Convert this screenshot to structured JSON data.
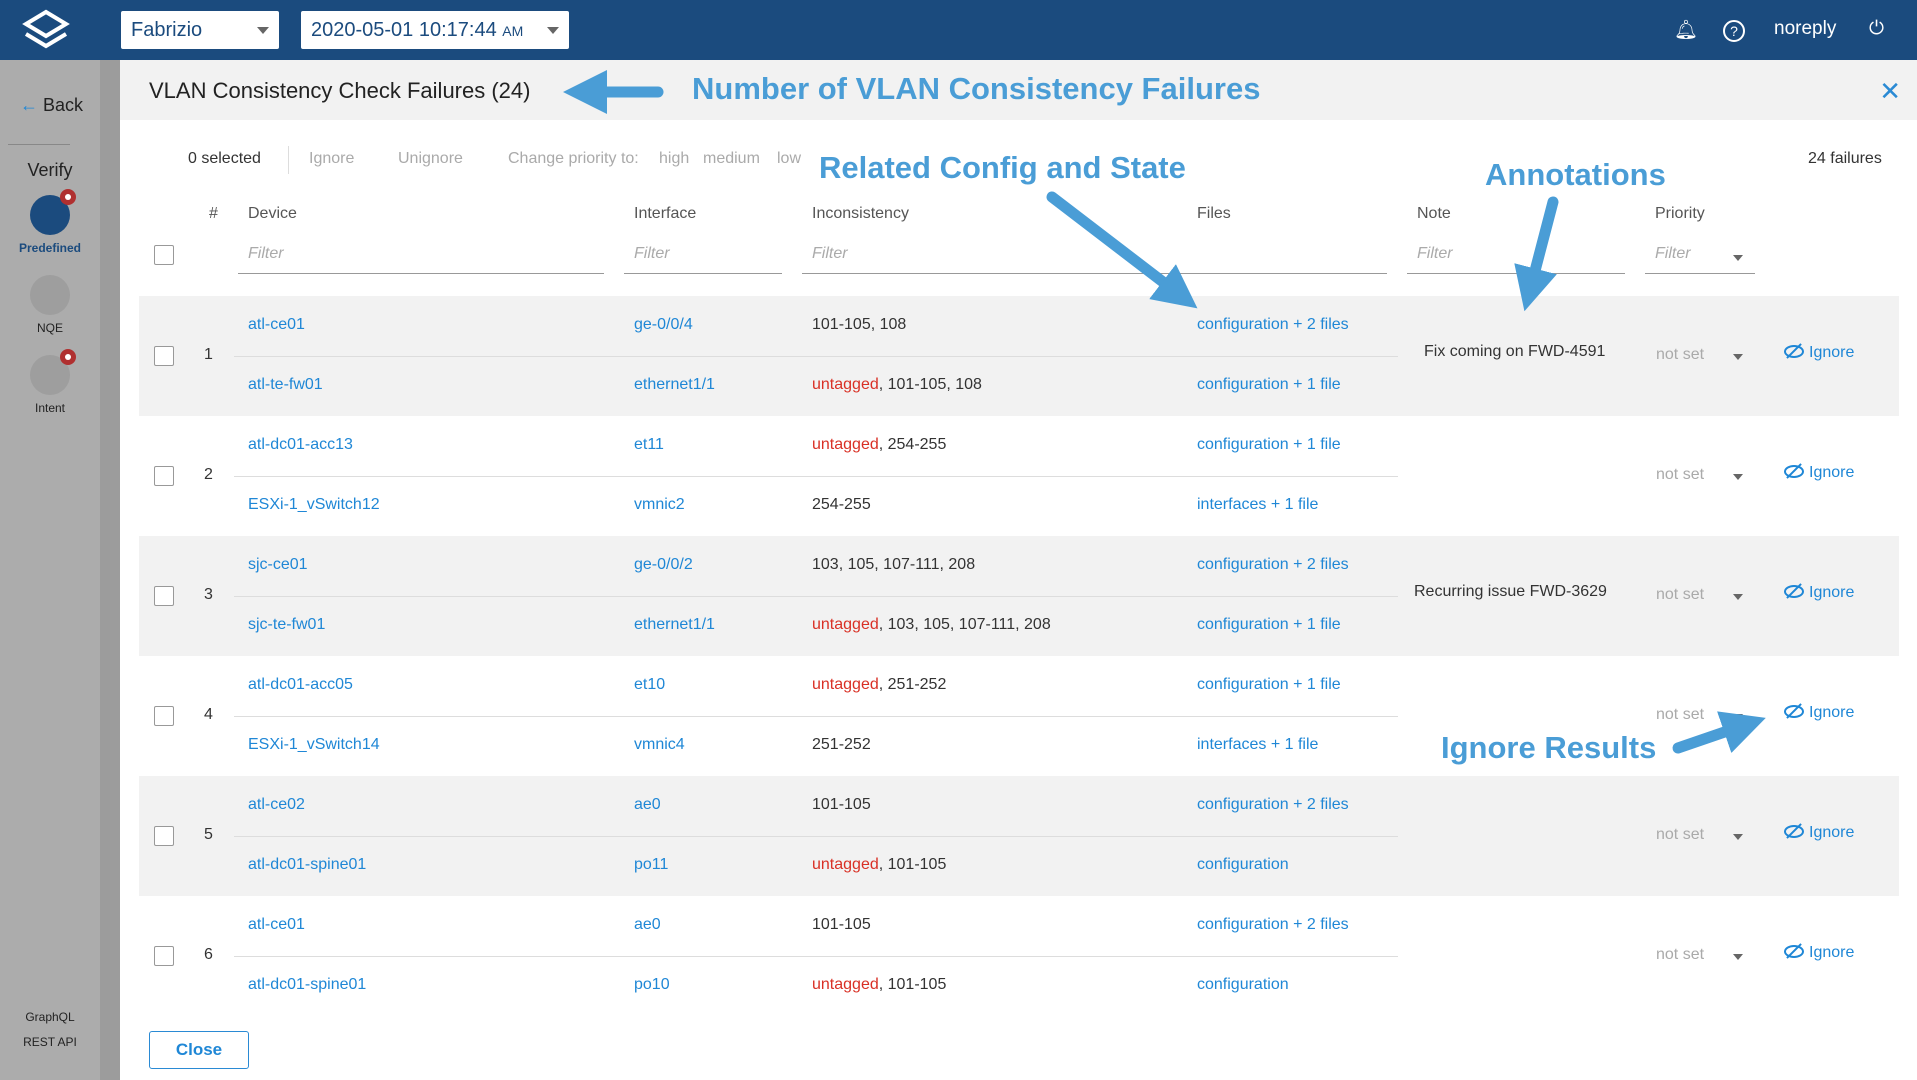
{
  "topbar": {
    "user_select": "Fabrizio",
    "date": "2020-05-01  10:17:44",
    "ampm": "AM",
    "username": "noreply"
  },
  "sidebar": {
    "back": "Back",
    "section": "Verify",
    "items": [
      {
        "label": "Predefined"
      },
      {
        "label": "NQE"
      },
      {
        "label": "Intent"
      }
    ],
    "footer": [
      "GraphQL",
      "REST API"
    ]
  },
  "panel": {
    "title": "VLAN Consistency Check Failures (24)",
    "failures_count": "24 failures",
    "close_label": "Close"
  },
  "toolbar": {
    "selected": "0 selected",
    "ignore": "Ignore",
    "unignore": "Unignore",
    "change_priority": "Change priority to:",
    "high": "high",
    "medium": "medium",
    "low": "low"
  },
  "columns": {
    "num": "#",
    "device": "Device",
    "interface": "Interface",
    "inconsistency": "Inconsistency",
    "files": "Files",
    "note": "Note",
    "priority": "Priority",
    "filter_placeholder": "Filter"
  },
  "rows": [
    {
      "num": "1",
      "note": "Fix coming on FWD-4591",
      "priority": "not set",
      "action": "Ignore",
      "entries": [
        {
          "device": "atl-ce01",
          "interface": "ge-0/0/4",
          "untagged": "",
          "vlans": "101-105, 108",
          "files": "configuration + 2 files"
        },
        {
          "device": "atl-te-fw01",
          "interface": "ethernet1/1",
          "untagged": "untagged",
          "vlans": ", 101-105, 108",
          "files": "configuration + 1 file"
        }
      ]
    },
    {
      "num": "2",
      "note": "",
      "priority": "not set",
      "action": "Ignore",
      "entries": [
        {
          "device": "atl-dc01-acc13",
          "interface": "et11",
          "untagged": "untagged",
          "vlans": ", 254-255",
          "files": "configuration + 1 file"
        },
        {
          "device": "ESXi-1_vSwitch12",
          "interface": "vmnic2",
          "untagged": "",
          "vlans": "254-255",
          "files": "interfaces + 1 file"
        }
      ]
    },
    {
      "num": "3",
      "note": "Recurring issue FWD-3629",
      "priority": "not set",
      "action": "Ignore",
      "entries": [
        {
          "device": "sjc-ce01",
          "interface": "ge-0/0/2",
          "untagged": "",
          "vlans": "103, 105, 107-111, 208",
          "files": "configuration + 2 files"
        },
        {
          "device": "sjc-te-fw01",
          "interface": "ethernet1/1",
          "untagged": "untagged",
          "vlans": ", 103, 105, 107-111, 208",
          "files": "configuration + 1 file"
        }
      ]
    },
    {
      "num": "4",
      "note": "",
      "priority": "not set",
      "action": "Ignore",
      "entries": [
        {
          "device": "atl-dc01-acc05",
          "interface": "et10",
          "untagged": "untagged",
          "vlans": ", 251-252",
          "files": "configuration + 1 file"
        },
        {
          "device": "ESXi-1_vSwitch14",
          "interface": "vmnic4",
          "untagged": "",
          "vlans": "251-252",
          "files": "interfaces + 1 file"
        }
      ]
    },
    {
      "num": "5",
      "note": "",
      "priority": "not set",
      "action": "Ignore",
      "entries": [
        {
          "device": "atl-ce02",
          "interface": "ae0",
          "untagged": "",
          "vlans": "101-105",
          "files": "configuration + 2 files"
        },
        {
          "device": "atl-dc01-spine01",
          "interface": "po11",
          "untagged": "untagged",
          "vlans": ", 101-105",
          "files": "configuration"
        }
      ]
    },
    {
      "num": "6",
      "note": "",
      "priority": "not set",
      "action": "Ignore",
      "entries": [
        {
          "device": "atl-ce01",
          "interface": "ae0",
          "untagged": "",
          "vlans": "101-105",
          "files": "configuration + 2 files"
        },
        {
          "device": "atl-dc01-spine01",
          "interface": "po10",
          "untagged": "untagged",
          "vlans": ", 101-105",
          "files": "configuration"
        }
      ]
    }
  ],
  "annotations": {
    "failures": "Number of VLAN Consistency Failures",
    "config": "Related Config and State",
    "notes": "Annotations",
    "ignore": "Ignore Results"
  },
  "colors": {
    "topbar": "#1b4b7e",
    "link": "#1f87d6",
    "untagged": "#d93025",
    "annotation": "#4a9dd6"
  }
}
